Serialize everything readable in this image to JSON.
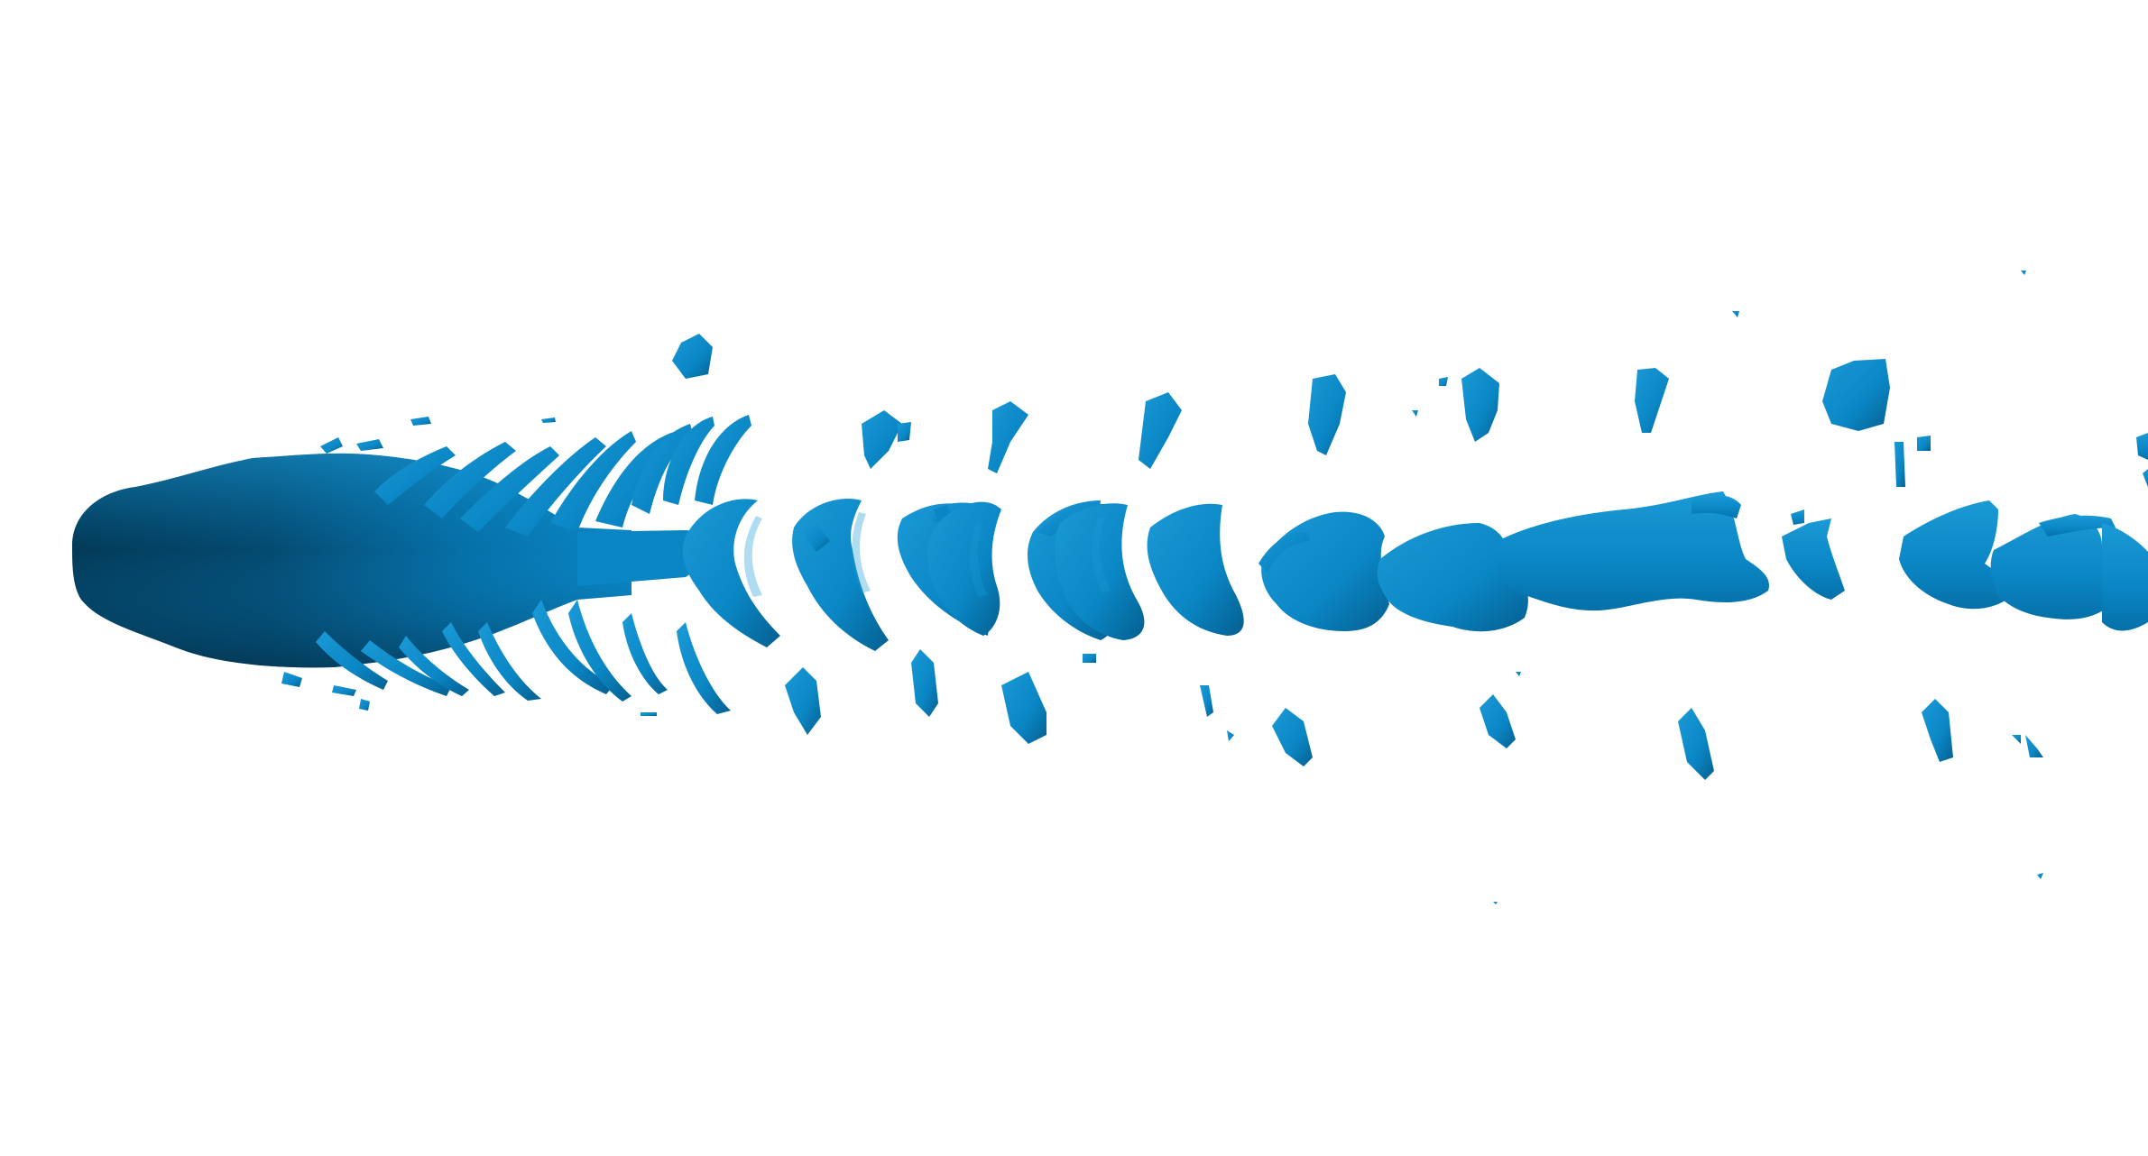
{
  "scene": {
    "background": "#ffffff",
    "colors": {
      "highlight": "#1a9ad6",
      "main": "#0a86c4",
      "mid": "#0670a8",
      "dark": "#054a70",
      "core": "#033a58"
    },
    "icon": "isosurface-vortex-wake"
  }
}
